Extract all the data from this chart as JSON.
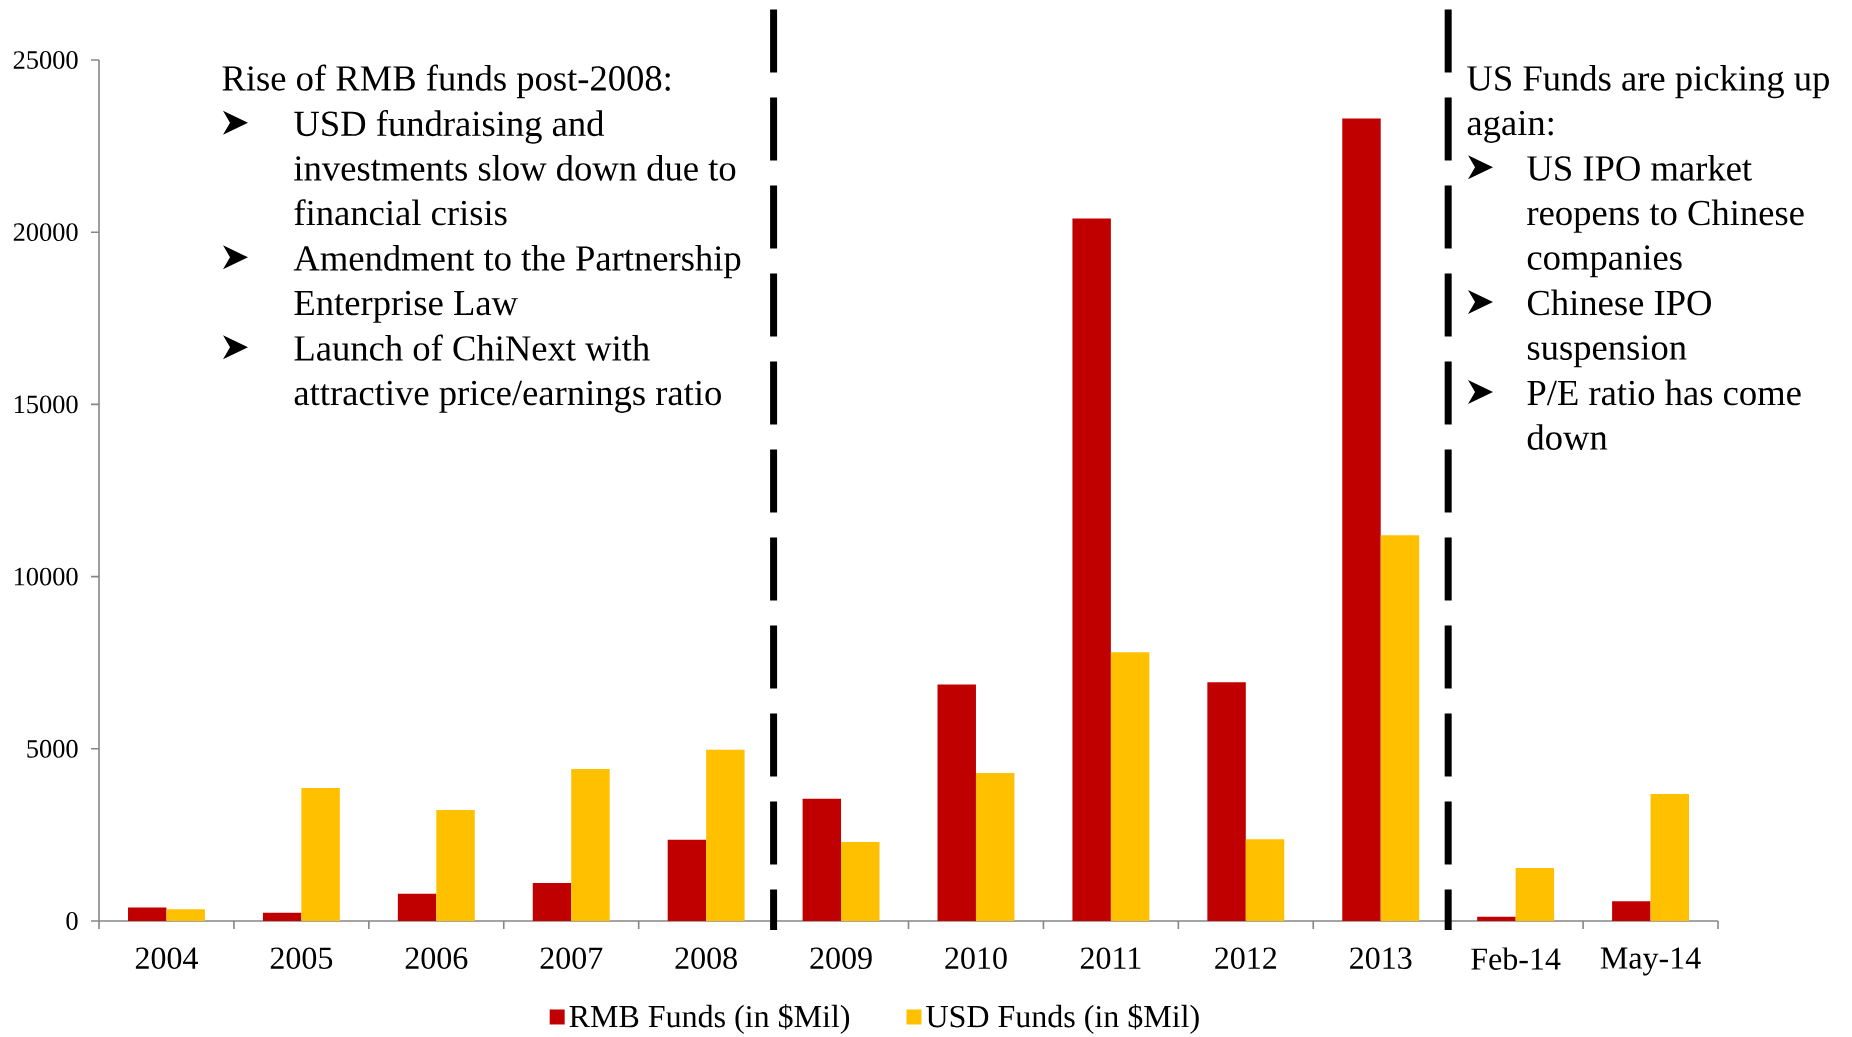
{
  "chart_data": {
    "type": "bar",
    "categories": [
      "2004",
      "2005",
      "2006",
      "2007",
      "2008",
      "2009",
      "2010",
      "2011",
      "2012",
      "2013",
      "Feb-14",
      "May-14"
    ],
    "series": [
      {
        "name": "RMB Funds (in $Mil)",
        "color": "#c00000",
        "values": [
          390,
          240,
          790,
          1100,
          2360,
          3550,
          6870,
          20400,
          6930,
          23300,
          120,
          570
        ]
      },
      {
        "name": "USD Funds (in $Mil)",
        "color": "#ffc000",
        "values": [
          340,
          3860,
          3220,
          4410,
          4970,
          2290,
          4300,
          7800,
          2370,
          11200,
          1540,
          3690
        ]
      }
    ],
    "ylim": [
      0,
      25000
    ],
    "yticks": [
      0,
      5000,
      10000,
      15000,
      20000,
      25000
    ],
    "legend": "bottom",
    "annotations": [
      "Rise of RMB funds post-2008:",
      "USD fundraising and investments slow down due to financial crisis",
      "Amendment to the Partnership Enterprise Law",
      "Launch of ChiNext with attractive price/earnings ratio",
      "US Funds are picking up again:",
      "US IPO market reopens to Chinese companies",
      "Chinese IPO suspension",
      "P/E ratio has come down"
    ]
  }
}
